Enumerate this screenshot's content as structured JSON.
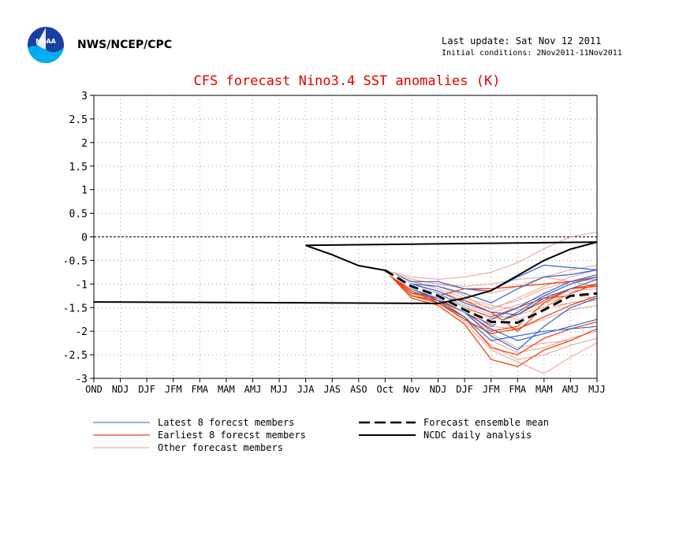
{
  "header": {
    "org": "NWS/NCEP/CPC",
    "last_update": "Last update: Sat Nov 12 2011",
    "initial_conditions": "Initial conditions: 2Nov2011-11Nov2011"
  },
  "logo": {
    "text": "NOAA"
  },
  "colors": {
    "title": "#dd0000",
    "latest": "#3366cc",
    "earliest": "#ee4411",
    "other": "#e6a090",
    "mean": "#000000",
    "analysis": "#000000",
    "grid": "#999999"
  },
  "chart_data": {
    "type": "line",
    "title": "CFS forecast Nino3.4 SST anomalies (K)",
    "xlabel": "",
    "ylabel": "",
    "categories": [
      "OND",
      "NDJ",
      "DJF",
      "JFM",
      "FMA",
      "MAM",
      "AMJ",
      "MJJ",
      "JJA",
      "JAS",
      "ASO",
      "Oct",
      "Nov",
      "NDJ",
      "DJF",
      "JFM",
      "FMA",
      "MAM",
      "AMJ",
      "MJJ"
    ],
    "ylim": [
      -3,
      3
    ],
    "yticks": [
      "3",
      "2.5",
      "2",
      "1.5",
      "1",
      "0.5",
      "0",
      "-0.5",
      "-1",
      "-1.5",
      "-2",
      "-2.5",
      "-3"
    ],
    "grid": true,
    "legend": [
      {
        "label": "Latest 8 forecst members",
        "style": "latest"
      },
      {
        "label": "Earliest 8 forecst members",
        "style": "earliest"
      },
      {
        "label": "Other forecast members",
        "style": "other"
      },
      {
        "label": "Forecast ensemble mean",
        "style": "mean"
      },
      {
        "label": "NCDC daily analysis",
        "style": "analysis"
      }
    ],
    "analysis": {
      "name": "NCDC daily analysis",
      "x": [
        "OND",
        "NDJ",
        "DJF",
        "JFM",
        "FMA",
        "MAM",
        "AMJ",
        "MJJ",
        "JJA",
        "JAS",
        "ASO",
        "Oct"
      ],
      "values": [
        -1.38,
        -1.41,
        -1.3,
        -1.14,
        -0.82,
        -0.5,
        -0.26,
        -0.11,
        -0.18,
        -0.38,
        -0.61,
        -0.71
      ]
    },
    "ensemble_mean": {
      "name": "Forecast ensemble mean",
      "x": [
        "Oct",
        "Nov",
        "NDJ",
        "DJF",
        "JFM",
        "FMA",
        "MAM",
        "AMJ",
        "MJJ"
      ],
      "values": [
        -0.71,
        -1.05,
        -1.25,
        -1.55,
        -1.8,
        -1.82,
        -1.55,
        -1.25,
        -1.2
      ]
    },
    "members_x": [
      "Oct",
      "Nov",
      "NDJ",
      "DJF",
      "JFM",
      "FMA",
      "MAM",
      "AMJ",
      "MJJ"
    ],
    "latest_members": [
      [
        -0.71,
        -0.95,
        -0.95,
        -1.1,
        -1.15,
        -0.85,
        -0.6,
        -0.65,
        -0.7
      ],
      [
        -0.71,
        -1.0,
        -1.05,
        -1.2,
        -1.4,
        -1.1,
        -0.85,
        -0.8,
        -0.7
      ],
      [
        -0.71,
        -1.05,
        -1.2,
        -1.5,
        -1.9,
        -1.6,
        -1.25,
        -1.0,
        -0.85
      ],
      [
        -0.71,
        -1.1,
        -1.3,
        -1.6,
        -2.1,
        -2.4,
        -1.9,
        -1.5,
        -1.3
      ],
      [
        -0.71,
        -1.1,
        -1.35,
        -1.7,
        -2.2,
        -2.1,
        -2.0,
        -1.95,
        -1.9
      ],
      [
        -0.71,
        -1.0,
        -1.15,
        -1.4,
        -1.6,
        -1.65,
        -1.3,
        -1.1,
        -0.9
      ],
      [
        -0.71,
        -1.05,
        -1.25,
        -1.55,
        -1.75,
        -1.5,
        -1.2,
        -0.95,
        -0.8
      ],
      [
        -0.71,
        -1.1,
        -1.3,
        -1.6,
        -1.95,
        -2.2,
        -2.05,
        -1.9,
        -1.75
      ]
    ],
    "earliest_members": [
      [
        -0.71,
        -1.2,
        -1.3,
        -1.35,
        -1.6,
        -2.0,
        -1.5,
        -1.2,
        -1.0
      ],
      [
        -0.71,
        -1.25,
        -1.35,
        -1.55,
        -2.0,
        -1.9,
        -1.4,
        -1.1,
        -1.0
      ],
      [
        -0.71,
        -1.2,
        -1.25,
        -1.1,
        -1.1,
        -1.05,
        -1.0,
        -0.95,
        -0.85
      ],
      [
        -0.71,
        -1.15,
        -1.4,
        -1.7,
        -2.35,
        -2.5,
        -2.15,
        -1.95,
        -1.8
      ],
      [
        -0.71,
        -1.3,
        -1.45,
        -1.85,
        -2.6,
        -2.75,
        -2.4,
        -2.2,
        -1.95
      ],
      [
        -0.71,
        -1.25,
        -1.4,
        -1.75,
        -2.05,
        -1.95,
        -1.7,
        -1.45,
        -1.25
      ],
      [
        -0.71,
        -1.15,
        -1.35,
        -1.6,
        -1.85,
        -1.65,
        -1.35,
        -1.1,
        -1.05
      ],
      [
        -0.71,
        -1.2,
        -1.3,
        -1.5,
        -1.7,
        -1.5,
        -1.3,
        -1.25,
        -1.2
      ]
    ],
    "other_members": [
      [
        -0.71,
        -0.85,
        -0.9,
        -0.85,
        -0.75,
        -0.55,
        -0.25,
        0.0,
        0.1
      ],
      [
        -0.71,
        -0.9,
        -1.0,
        -1.1,
        -1.2,
        -1.05,
        -0.85,
        -0.7,
        -0.6
      ],
      [
        -0.71,
        -1.0,
        -1.15,
        -1.35,
        -1.5,
        -1.35,
        -1.1,
        -0.95,
        -0.9
      ],
      [
        -0.71,
        -1.05,
        -1.25,
        -1.6,
        -2.05,
        -2.35,
        -2.25,
        -2.2,
        -1.95
      ],
      [
        -0.71,
        -1.1,
        -1.35,
        -1.8,
        -2.4,
        -2.65,
        -2.9,
        -2.55,
        -2.25
      ],
      [
        -0.71,
        -0.95,
        -1.1,
        -1.3,
        -1.45,
        -1.55,
        -1.4,
        -1.25,
        -1.3
      ],
      [
        -0.71,
        -1.0,
        -1.2,
        -1.45,
        -1.65,
        -1.75,
        -1.55,
        -1.4,
        -1.35
      ],
      [
        -0.71,
        -1.1,
        -1.3,
        -1.55,
        -1.9,
        -1.95,
        -1.75,
        -1.55,
        -1.45
      ],
      [
        -0.71,
        -1.05,
        -1.3,
        -1.7,
        -2.2,
        -2.45,
        -2.35,
        -2.15,
        -2.0
      ],
      [
        -0.71,
        -0.95,
        -1.05,
        -1.25,
        -1.55,
        -1.3,
        -1.05,
        -0.85,
        -0.7
      ],
      [
        -0.71,
        -1.15,
        -1.4,
        -1.75,
        -2.3,
        -2.6,
        -2.5,
        -2.3,
        -2.15
      ],
      [
        -0.71,
        -1.0,
        -1.15,
        -1.35,
        -1.6,
        -1.45,
        -1.25,
        -1.15,
        -1.1
      ],
      [
        -0.71,
        -0.9,
        -1.0,
        -1.05,
        -1.0,
        -0.9,
        -0.85,
        -0.95,
        -1.05
      ],
      [
        -0.71,
        -1.1,
        -1.35,
        -1.6,
        -1.75,
        -1.65,
        -1.5,
        -1.4,
        -1.3
      ]
    ]
  }
}
